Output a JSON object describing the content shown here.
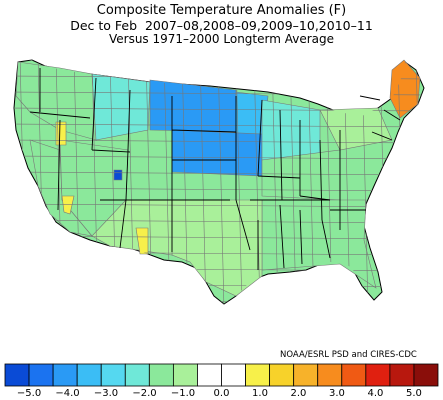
{
  "title": {
    "line1": "Composite Temperature Anomalies (F)",
    "line2": "Dec to Feb  2007–08,2008–09,2009–10,2010–11",
    "line3": "Versus 1971–2000 Longterm Average"
  },
  "credit": "NOAA/ESRL PSD and CIRES-CDC",
  "colors": {
    "state_border": "#000000",
    "division_border": "#777777",
    "bins": [
      "#0a4bd6",
      "#1b73f0",
      "#2a9af5",
      "#3bbdf5",
      "#55d8f0",
      "#6fe8d8",
      "#8be89b",
      "#a9f09a",
      "#ffffff",
      "#ffffff",
      "#f7f04a",
      "#f7d22a",
      "#f7b22a",
      "#f78c1e",
      "#f05a14",
      "#e02010",
      "#b8180e",
      "#8a0e0a"
    ]
  },
  "legend": {
    "tick_labels": [
      "−5.0",
      "−4.0",
      "−3.0",
      "−2.0",
      "−1.0",
      "0.0",
      "1.0",
      "2.0",
      "3.0",
      "4.0",
      "5.0"
    ]
  },
  "map_regions": [
    {
      "name": "pacific-northwest",
      "bin": 6
    },
    {
      "name": "northern-rockies",
      "bin": 5
    },
    {
      "name": "northern-plains",
      "bin": 2
    },
    {
      "name": "upper-midwest",
      "bin": 3
    },
    {
      "name": "central-plains",
      "bin": 2
    },
    {
      "name": "great-lakes",
      "bin": 5
    },
    {
      "name": "ohio-valley",
      "bin": 6
    },
    {
      "name": "northeast",
      "bin": 7
    },
    {
      "name": "maine",
      "bin": 13
    },
    {
      "name": "southeast",
      "bin": 6
    },
    {
      "name": "southern-plains",
      "bin": 7
    },
    {
      "name": "southwest",
      "bin": 7
    },
    {
      "name": "california",
      "bin": 6
    },
    {
      "name": "great-basin",
      "bin": 6
    },
    {
      "name": "utah-spot",
      "bin": 0
    },
    {
      "name": "idaho-spot",
      "bin": 10
    },
    {
      "name": "nevada-spot",
      "bin": 10
    },
    {
      "name": "new-mexico-spot",
      "bin": 10
    }
  ]
}
